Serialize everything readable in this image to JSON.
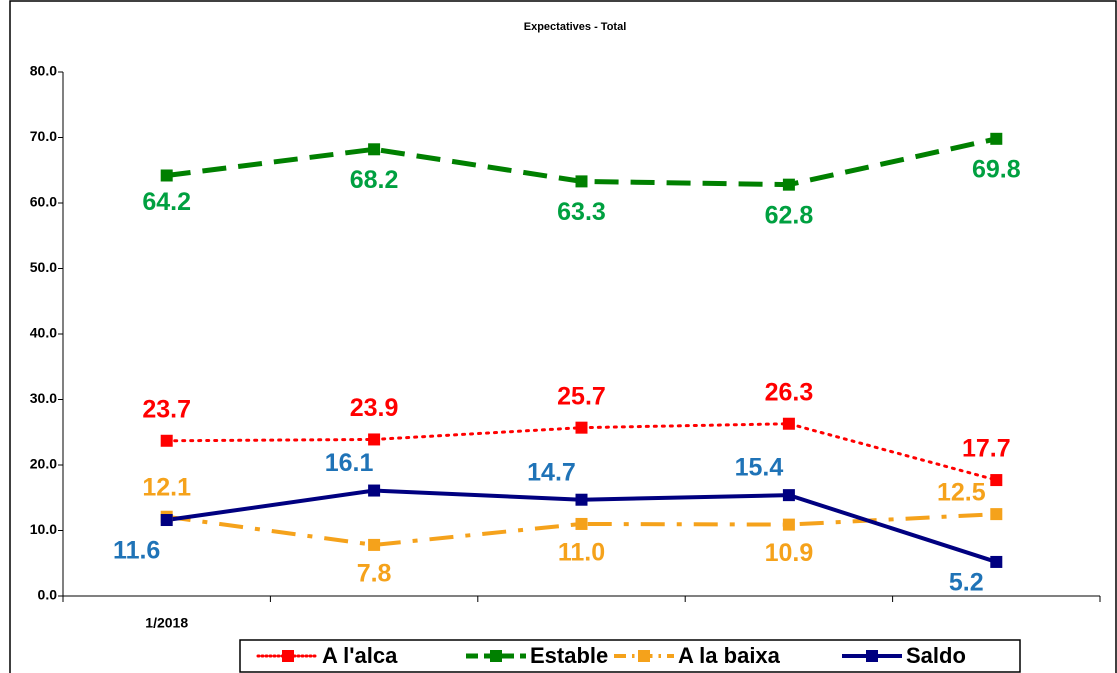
{
  "chart_data": {
    "type": "line",
    "title": "Expectatives - Total",
    "categories": [
      "1/2018",
      null,
      null,
      null,
      null
    ],
    "series": [
      {
        "name": "A l'alca",
        "color": "#ff0000",
        "label_color": "#ff0000",
        "style": "dotted",
        "marker": "square",
        "values": [
          23.7,
          23.9,
          25.7,
          26.3,
          17.7
        ]
      },
      {
        "name": "Estable",
        "color": "#008000",
        "label_color": "#00a040",
        "style": "dashed",
        "marker": "square",
        "values": [
          64.2,
          68.2,
          63.3,
          62.8,
          69.8
        ]
      },
      {
        "name": "A la baixa",
        "color": "#f5a21b",
        "label_color": "#f5a21b",
        "style": "dashdot",
        "marker": "square",
        "values": [
          12.1,
          7.8,
          11.0,
          10.9,
          12.5
        ],
        "value_labels": [
          "12.1",
          "7.8",
          "11.0",
          "10.9",
          "12.5"
        ]
      },
      {
        "name": "Saldo",
        "color": "#000080",
        "label_color": "#1f73b7",
        "style": "solid",
        "marker": "square",
        "values": [
          11.6,
          16.1,
          14.7,
          15.4,
          5.2
        ]
      }
    ],
    "ylim": [
      0,
      80
    ],
    "yticks": [
      {
        "value": 0,
        "label": "0.0"
      },
      {
        "value": 10,
        "label": "10.0"
      },
      {
        "value": 20,
        "label": "20.0"
      },
      {
        "value": 30,
        "label": "30.0"
      },
      {
        "value": 40,
        "label": "40.0"
      },
      {
        "value": 50,
        "label": "50.0"
      },
      {
        "value": 60,
        "label": "60.0"
      },
      {
        "value": 70,
        "label": "70.0"
      },
      {
        "value": 80,
        "label": "80.0"
      }
    ],
    "grid": false,
    "legend": "bottom"
  }
}
